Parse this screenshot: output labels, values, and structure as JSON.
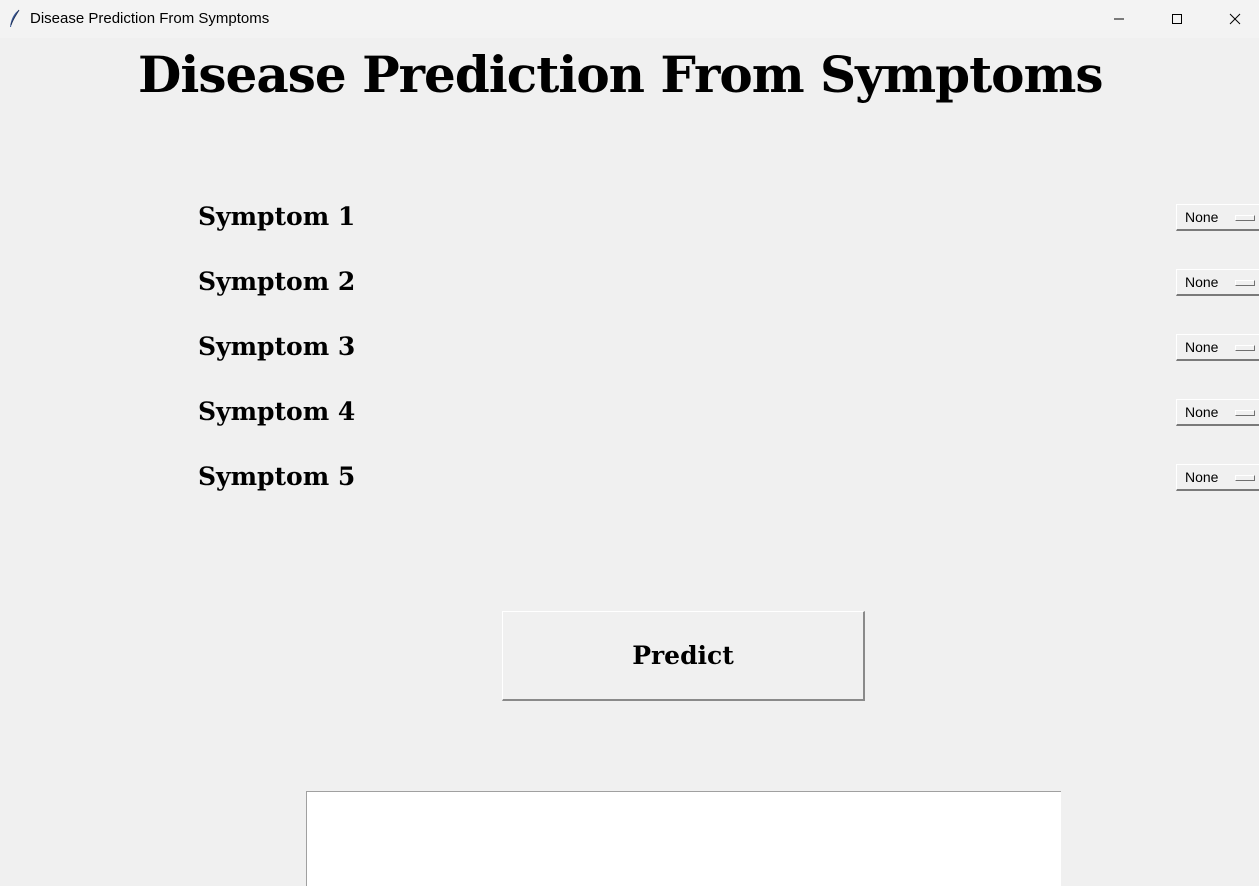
{
  "window": {
    "title": "Disease Prediction From Symptoms",
    "icon": "feather-icon"
  },
  "main": {
    "heading": "Disease Prediction From Symptoms",
    "symptoms": [
      {
        "label": "Symptom 1",
        "value": "None"
      },
      {
        "label": "Symptom 2",
        "value": "None"
      },
      {
        "label": "Symptom 3",
        "value": "None"
      },
      {
        "label": "Symptom 4",
        "value": "None"
      },
      {
        "label": "Symptom 5",
        "value": "None"
      }
    ],
    "predict_label": "Predict",
    "result_text": ""
  }
}
